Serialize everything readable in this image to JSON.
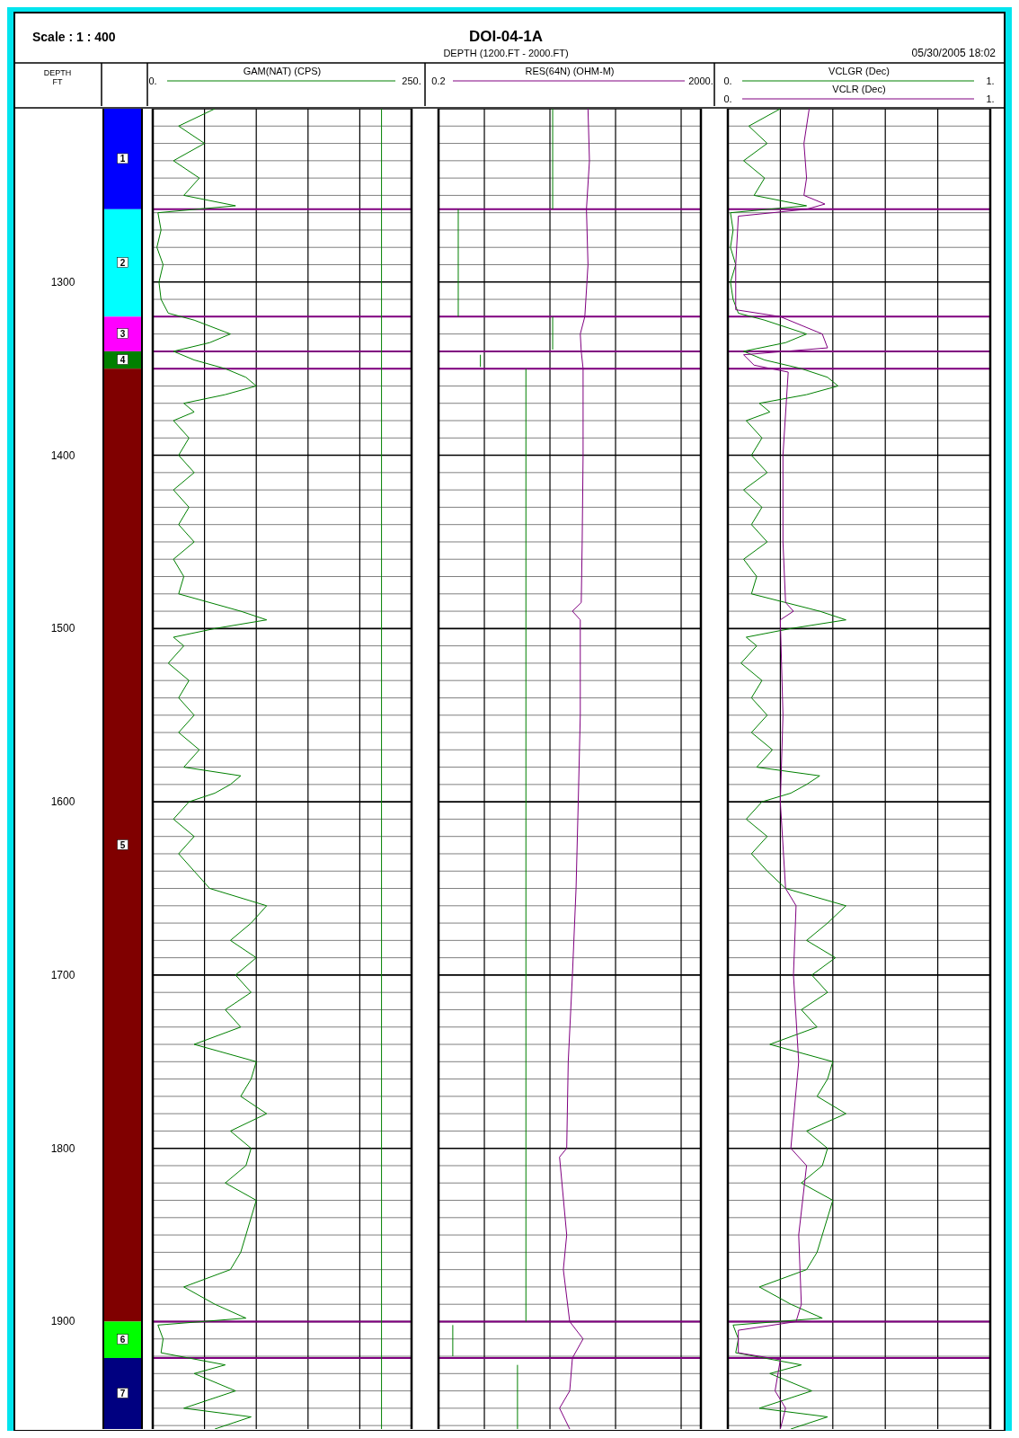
{
  "chart_data": [
    {
      "type": "bar",
      "title": "DOI-04-1A",
      "subtitle": "DEPTH (1200.FT - 2000.FT)",
      "annotations": [
        "Scale : 1 : 400",
        "05/30/2005 18:02"
      ],
      "ylabel": "DEPTH FT",
      "categories": [
        null
      ],
      "ylim": [
        1962,
        1200
      ],
      "yticks": [
        1300,
        1400,
        1500,
        1600,
        1700,
        1800,
        1900
      ],
      "tick_labels": "y",
      "series": [
        {
          "name": "1",
          "color": "#0000ff",
          "base": [
            1200
          ],
          "values": [
            58
          ]
        },
        {
          "name": "2",
          "color": "#00ffff",
          "base": [
            1258
          ],
          "values": [
            62
          ]
        },
        {
          "name": "3",
          "color": "#ff00ff",
          "base": [
            1320
          ],
          "values": [
            20
          ]
        },
        {
          "name": "4",
          "color": "#008000",
          "base": [
            1340
          ],
          "values": [
            10
          ]
        },
        {
          "name": "5",
          "color": "#800000",
          "base": [
            1350
          ],
          "values": [
            550
          ]
        },
        {
          "name": "6",
          "color": "#00ff00",
          "base": [
            1900
          ],
          "values": [
            21
          ]
        },
        {
          "name": "7",
          "color": "#000080",
          "base": [
            1921
          ],
          "values": [
            41
          ]
        }
      ]
    },
    {
      "type": "line",
      "orientation": "horizontal",
      "xlabel": "GAM(NAT) (CPS)",
      "xlim": [
        0,
        250
      ],
      "xticks": [
        {
          "value": 0,
          "label": "0."
        },
        {
          "value": 50,
          "label": null
        },
        {
          "value": 100,
          "label": null
        },
        {
          "value": 150,
          "label": null
        },
        {
          "value": 200,
          "label": null
        },
        {
          "value": 250,
          "label": "250."
        }
      ],
      "ylim": [
        1962,
        1200
      ],
      "yticks": [
        1200,
        1210,
        1220,
        1230,
        1240,
        1250,
        1260,
        1270,
        1280,
        1290,
        1300,
        1310,
        1320,
        1330,
        1340,
        1350,
        1360,
        1370,
        1380,
        1390,
        1400,
        1410,
        1420,
        1430,
        1440,
        1450,
        1460,
        1470,
        1480,
        1490,
        1500,
        1510,
        1520,
        1530,
        1540,
        1550,
        1560,
        1570,
        1580,
        1590,
        1600,
        1610,
        1620,
        1630,
        1640,
        1650,
        1660,
        1670,
        1680,
        1690,
        1700,
        1710,
        1720,
        1730,
        1740,
        1750,
        1760,
        1770,
        1780,
        1790,
        1800,
        1810,
        1820,
        1830,
        1840,
        1850,
        1860,
        1870,
        1880,
        1890,
        1900,
        1910,
        1920,
        1930,
        1940,
        1950,
        1960
      ],
      "tick_labels": "x",
      "grid": true,
      "ref_lines": [
        {
          "axis": "y",
          "value": 1258,
          "color": "#800080"
        },
        {
          "axis": "y",
          "value": 1320,
          "color": "#800080"
        },
        {
          "axis": "y",
          "value": 1340,
          "color": "#800080"
        },
        {
          "axis": "y",
          "value": 1350,
          "color": "#800080"
        },
        {
          "axis": "y",
          "value": 1900,
          "color": "#800080"
        },
        {
          "axis": "y",
          "value": 1921,
          "color": "#800080"
        }
      ],
      "series": [
        {
          "color": "#008000",
          "values": [
            60,
            25,
            50,
            20,
            45,
            30,
            80,
            5,
            8,
            4,
            10,
            6,
            8,
            15,
            40,
            75,
            55,
            20,
            40,
            70,
            90,
            100,
            70,
            30,
            40,
            20,
            35,
            25,
            40,
            20,
            35,
            25,
            40,
            20,
            30,
            25,
            85,
            110,
            60,
            20,
            30,
            15,
            35,
            25,
            40,
            25,
            45,
            30,
            85,
            75,
            60,
            35,
            20,
            40,
            25,
            40,
            55,
            110,
            95,
            75,
            100,
            80,
            95,
            70,
            85,
            40,
            100,
            95,
            85,
            110,
            75,
            95,
            90,
            70,
            100,
            95,
            90,
            85,
            75,
            30,
            60,
            90,
            5,
            10,
            8,
            70,
            40,
            80,
            30,
            95,
            60
          ],
          "x": [
            1200,
            1210,
            1220,
            1230,
            1240,
            1250,
            1256,
            1260,
            1270,
            1280,
            1290,
            1300,
            1310,
            1318,
            1322,
            1330,
            1335,
            1340,
            1345,
            1350,
            1355,
            1360,
            1365,
            1370,
            1375,
            1380,
            1390,
            1400,
            1410,
            1420,
            1430,
            1440,
            1450,
            1460,
            1470,
            1480,
            1490,
            1495,
            1500,
            1505,
            1510,
            1520,
            1530,
            1540,
            1550,
            1560,
            1570,
            1580,
            1585,
            1590,
            1595,
            1600,
            1610,
            1620,
            1630,
            1640,
            1650,
            1660,
            1670,
            1680,
            1690,
            1700,
            1710,
            1720,
            1730,
            1740,
            1750,
            1760,
            1770,
            1780,
            1790,
            1800,
            1810,
            1820,
            1830,
            1840,
            1850,
            1860,
            1870,
            1880,
            1890,
            1898,
            1902,
            1910,
            1918,
            1925,
            1930,
            1940,
            1950,
            1955,
            1962
          ]
        },
        {
          "color": "#008000",
          "values": [
            221,
            221
          ],
          "x": [
            1200,
            1962
          ]
        }
      ]
    },
    {
      "type": "line",
      "orientation": "horizontal",
      "xlabel": "RES(64N) (OHM-M)",
      "log": "x",
      "xlim": [
        0.2,
        2000
      ],
      "xticks": [
        {
          "value": 0.2,
          "label": "0.2"
        },
        {
          "value": 1,
          "label": null
        },
        {
          "value": 10,
          "label": null
        },
        {
          "value": 100,
          "label": null
        },
        {
          "value": 1000,
          "label": null
        },
        {
          "value": 2000,
          "label": "2000."
        }
      ],
      "ylim": [
        1962,
        1200
      ],
      "yticks": [
        1200,
        1210,
        1220,
        1230,
        1240,
        1250,
        1260,
        1270,
        1280,
        1290,
        1300,
        1310,
        1320,
        1330,
        1340,
        1350,
        1360,
        1370,
        1380,
        1390,
        1400,
        1410,
        1420,
        1430,
        1440,
        1450,
        1460,
        1470,
        1480,
        1490,
        1500,
        1510,
        1520,
        1530,
        1540,
        1550,
        1560,
        1570,
        1580,
        1590,
        1600,
        1610,
        1620,
        1630,
        1640,
        1650,
        1660,
        1670,
        1680,
        1690,
        1700,
        1710,
        1720,
        1730,
        1740,
        1750,
        1760,
        1770,
        1780,
        1790,
        1800,
        1810,
        1820,
        1830,
        1840,
        1850,
        1860,
        1870,
        1880,
        1890,
        1900,
        1910,
        1920,
        1930,
        1940,
        1950,
        1960
      ],
      "tick_labels": "x",
      "grid": true,
      "ref_lines": [
        {
          "axis": "y",
          "value": 1258,
          "color": "#800080"
        },
        {
          "axis": "y",
          "value": 1320,
          "color": "#800080"
        },
        {
          "axis": "y",
          "value": 1340,
          "color": "#800080"
        },
        {
          "axis": "y",
          "value": 1350,
          "color": "#800080"
        },
        {
          "axis": "y",
          "value": 1900,
          "color": "#800080"
        },
        {
          "axis": "y",
          "value": 1921,
          "color": "#800080"
        }
      ],
      "series": [
        {
          "color": "#800080",
          "values": [
            38,
            40,
            36,
            38,
            34,
            29,
            30,
            32,
            32,
            31,
            30,
            22,
            29,
            29,
            27,
            25,
            22,
            19,
            18,
            14,
            18,
            16,
            20,
            32,
            22,
            20,
            14,
            20
          ],
          "x": [
            1200,
            1230,
            1258,
            1290,
            1320,
            1330,
            1340,
            1350,
            1400,
            1450,
            1485,
            1490,
            1495,
            1550,
            1600,
            1650,
            1700,
            1750,
            1800,
            1805,
            1850,
            1870,
            1900,
            1910,
            1921,
            1940,
            1950,
            1962
          ]
        },
        {
          "color": "#008000",
          "values": [
            11,
            11,
            null,
            0.4,
            0.4,
            null,
            11,
            11,
            null,
            0.87,
            0.87,
            null,
            4.3,
            4.3,
            null,
            0.33,
            0.33,
            null,
            3.2,
            3.2
          ],
          "x": [
            1200,
            1258,
            null,
            1258,
            1320,
            null,
            1320,
            1339,
            null,
            1342,
            1349,
            null,
            1350,
            1900,
            null,
            1902,
            1920,
            null,
            1925,
            1962
          ]
        }
      ]
    },
    {
      "type": "line",
      "orientation": "horizontal",
      "xlabel": "VCLGR (Dec)",
      "x2label": "VCLR (Dec)",
      "xlim": [
        0,
        1
      ],
      "xticks": [
        {
          "value": 0,
          "label": "0."
        },
        {
          "value": 0.2,
          "label": null
        },
        {
          "value": 0.4,
          "label": null
        },
        {
          "value": 0.6,
          "label": null
        },
        {
          "value": 0.8,
          "label": null
        },
        {
          "value": 1,
          "label": "1."
        }
      ],
      "x2lim": [
        0,
        1
      ],
      "x2ticks": [
        {
          "value": 0,
          "label": "0."
        },
        {
          "value": 1,
          "label": "1."
        }
      ],
      "ylim": [
        1962,
        1200
      ],
      "yticks": [
        1200,
        1210,
        1220,
        1230,
        1240,
        1250,
        1260,
        1270,
        1280,
        1290,
        1300,
        1310,
        1320,
        1330,
        1340,
        1350,
        1360,
        1370,
        1380,
        1390,
        1400,
        1410,
        1420,
        1430,
        1440,
        1450,
        1460,
        1470,
        1480,
        1490,
        1500,
        1510,
        1520,
        1530,
        1540,
        1550,
        1560,
        1570,
        1580,
        1590,
        1600,
        1610,
        1620,
        1630,
        1640,
        1650,
        1660,
        1670,
        1680,
        1690,
        1700,
        1710,
        1720,
        1730,
        1740,
        1750,
        1760,
        1770,
        1780,
        1790,
        1800,
        1810,
        1820,
        1830,
        1840,
        1850,
        1860,
        1870,
        1880,
        1890,
        1900,
        1910,
        1920,
        1930,
        1940,
        1950,
        1960
      ],
      "tick_labels": "x",
      "grid": true,
      "ref_lines": [
        {
          "axis": "y",
          "value": 1258,
          "color": "#800080"
        },
        {
          "axis": "y",
          "value": 1320,
          "color": "#800080"
        },
        {
          "axis": "y",
          "value": 1340,
          "color": "#800080"
        },
        {
          "axis": "y",
          "value": 1350,
          "color": "#800080"
        },
        {
          "axis": "y",
          "value": 1900,
          "color": "#800080"
        },
        {
          "axis": "y",
          "value": 1921,
          "color": "#800080"
        }
      ],
      "series": [
        {
          "color": "#008000",
          "values": [
            0.2,
            0.08,
            0.15,
            0.06,
            0.14,
            0.1,
            0.3,
            0.01,
            0.02,
            0.01,
            0.03,
            0.01,
            0.02,
            0.04,
            0.14,
            0.3,
            0.22,
            0.06,
            0.14,
            0.28,
            0.38,
            0.42,
            0.3,
            0.12,
            0.16,
            0.07,
            0.13,
            0.09,
            0.15,
            0.06,
            0.13,
            0.09,
            0.15,
            0.06,
            0.11,
            0.09,
            0.35,
            0.45,
            0.24,
            0.07,
            0.11,
            0.05,
            0.13,
            0.09,
            0.15,
            0.09,
            0.17,
            0.11,
            0.35,
            0.3,
            0.24,
            0.13,
            0.07,
            0.15,
            0.09,
            0.15,
            0.22,
            0.45,
            0.38,
            0.3,
            0.41,
            0.32,
            0.38,
            0.28,
            0.34,
            0.16,
            0.4,
            0.38,
            0.34,
            0.45,
            0.3,
            0.38,
            0.36,
            0.28,
            0.4,
            0.38,
            0.36,
            0.34,
            0.3,
            0.12,
            0.24,
            0.36,
            0.02,
            0.04,
            0.03,
            0.28,
            0.16,
            0.32,
            0.12,
            0.38,
            0.24
          ],
          "x": [
            1200,
            1210,
            1220,
            1230,
            1240,
            1250,
            1256,
            1260,
            1270,
            1280,
            1290,
            1300,
            1310,
            1318,
            1322,
            1330,
            1335,
            1340,
            1345,
            1350,
            1355,
            1360,
            1365,
            1370,
            1375,
            1380,
            1390,
            1400,
            1410,
            1420,
            1430,
            1440,
            1450,
            1460,
            1470,
            1480,
            1490,
            1495,
            1500,
            1505,
            1510,
            1520,
            1530,
            1540,
            1550,
            1560,
            1570,
            1580,
            1585,
            1590,
            1595,
            1600,
            1610,
            1620,
            1630,
            1640,
            1650,
            1660,
            1670,
            1680,
            1690,
            1700,
            1710,
            1720,
            1730,
            1740,
            1750,
            1760,
            1770,
            1780,
            1790,
            1800,
            1810,
            1820,
            1830,
            1840,
            1850,
            1860,
            1870,
            1880,
            1890,
            1898,
            1902,
            1910,
            1918,
            1925,
            1930,
            1940,
            1950,
            1955,
            1962
          ]
        },
        {
          "color": "#800080",
          "axis": "x2",
          "values": [
            0.31,
            0.29,
            0.3,
            0.29,
            0.37,
            0.3,
            0.04,
            0.03,
            0.03,
            0.2,
            0.36,
            0.38,
            0.06,
            0.1,
            0.23,
            0.21,
            0.21,
            0.22,
            0.25,
            0.2,
            0.21,
            0.2,
            0.22,
            0.26,
            0.25,
            0.27,
            0.24,
            0.3,
            0.27,
            0.28,
            0.26,
            0.04,
            0.04,
            0.2,
            0.18,
            0.22,
            0.2
          ],
          "x": [
            1200,
            1220,
            1240,
            1250,
            1255,
            1258,
            1262,
            1290,
            1316,
            1320,
            1330,
            1338,
            1342,
            1348,
            1352,
            1400,
            1450,
            1485,
            1490,
            1495,
            1550,
            1600,
            1650,
            1660,
            1700,
            1750,
            1800,
            1810,
            1850,
            1890,
            1900,
            1905,
            1918,
            1922,
            1940,
            1950,
            1962
          ]
        }
      ]
    }
  ]
}
